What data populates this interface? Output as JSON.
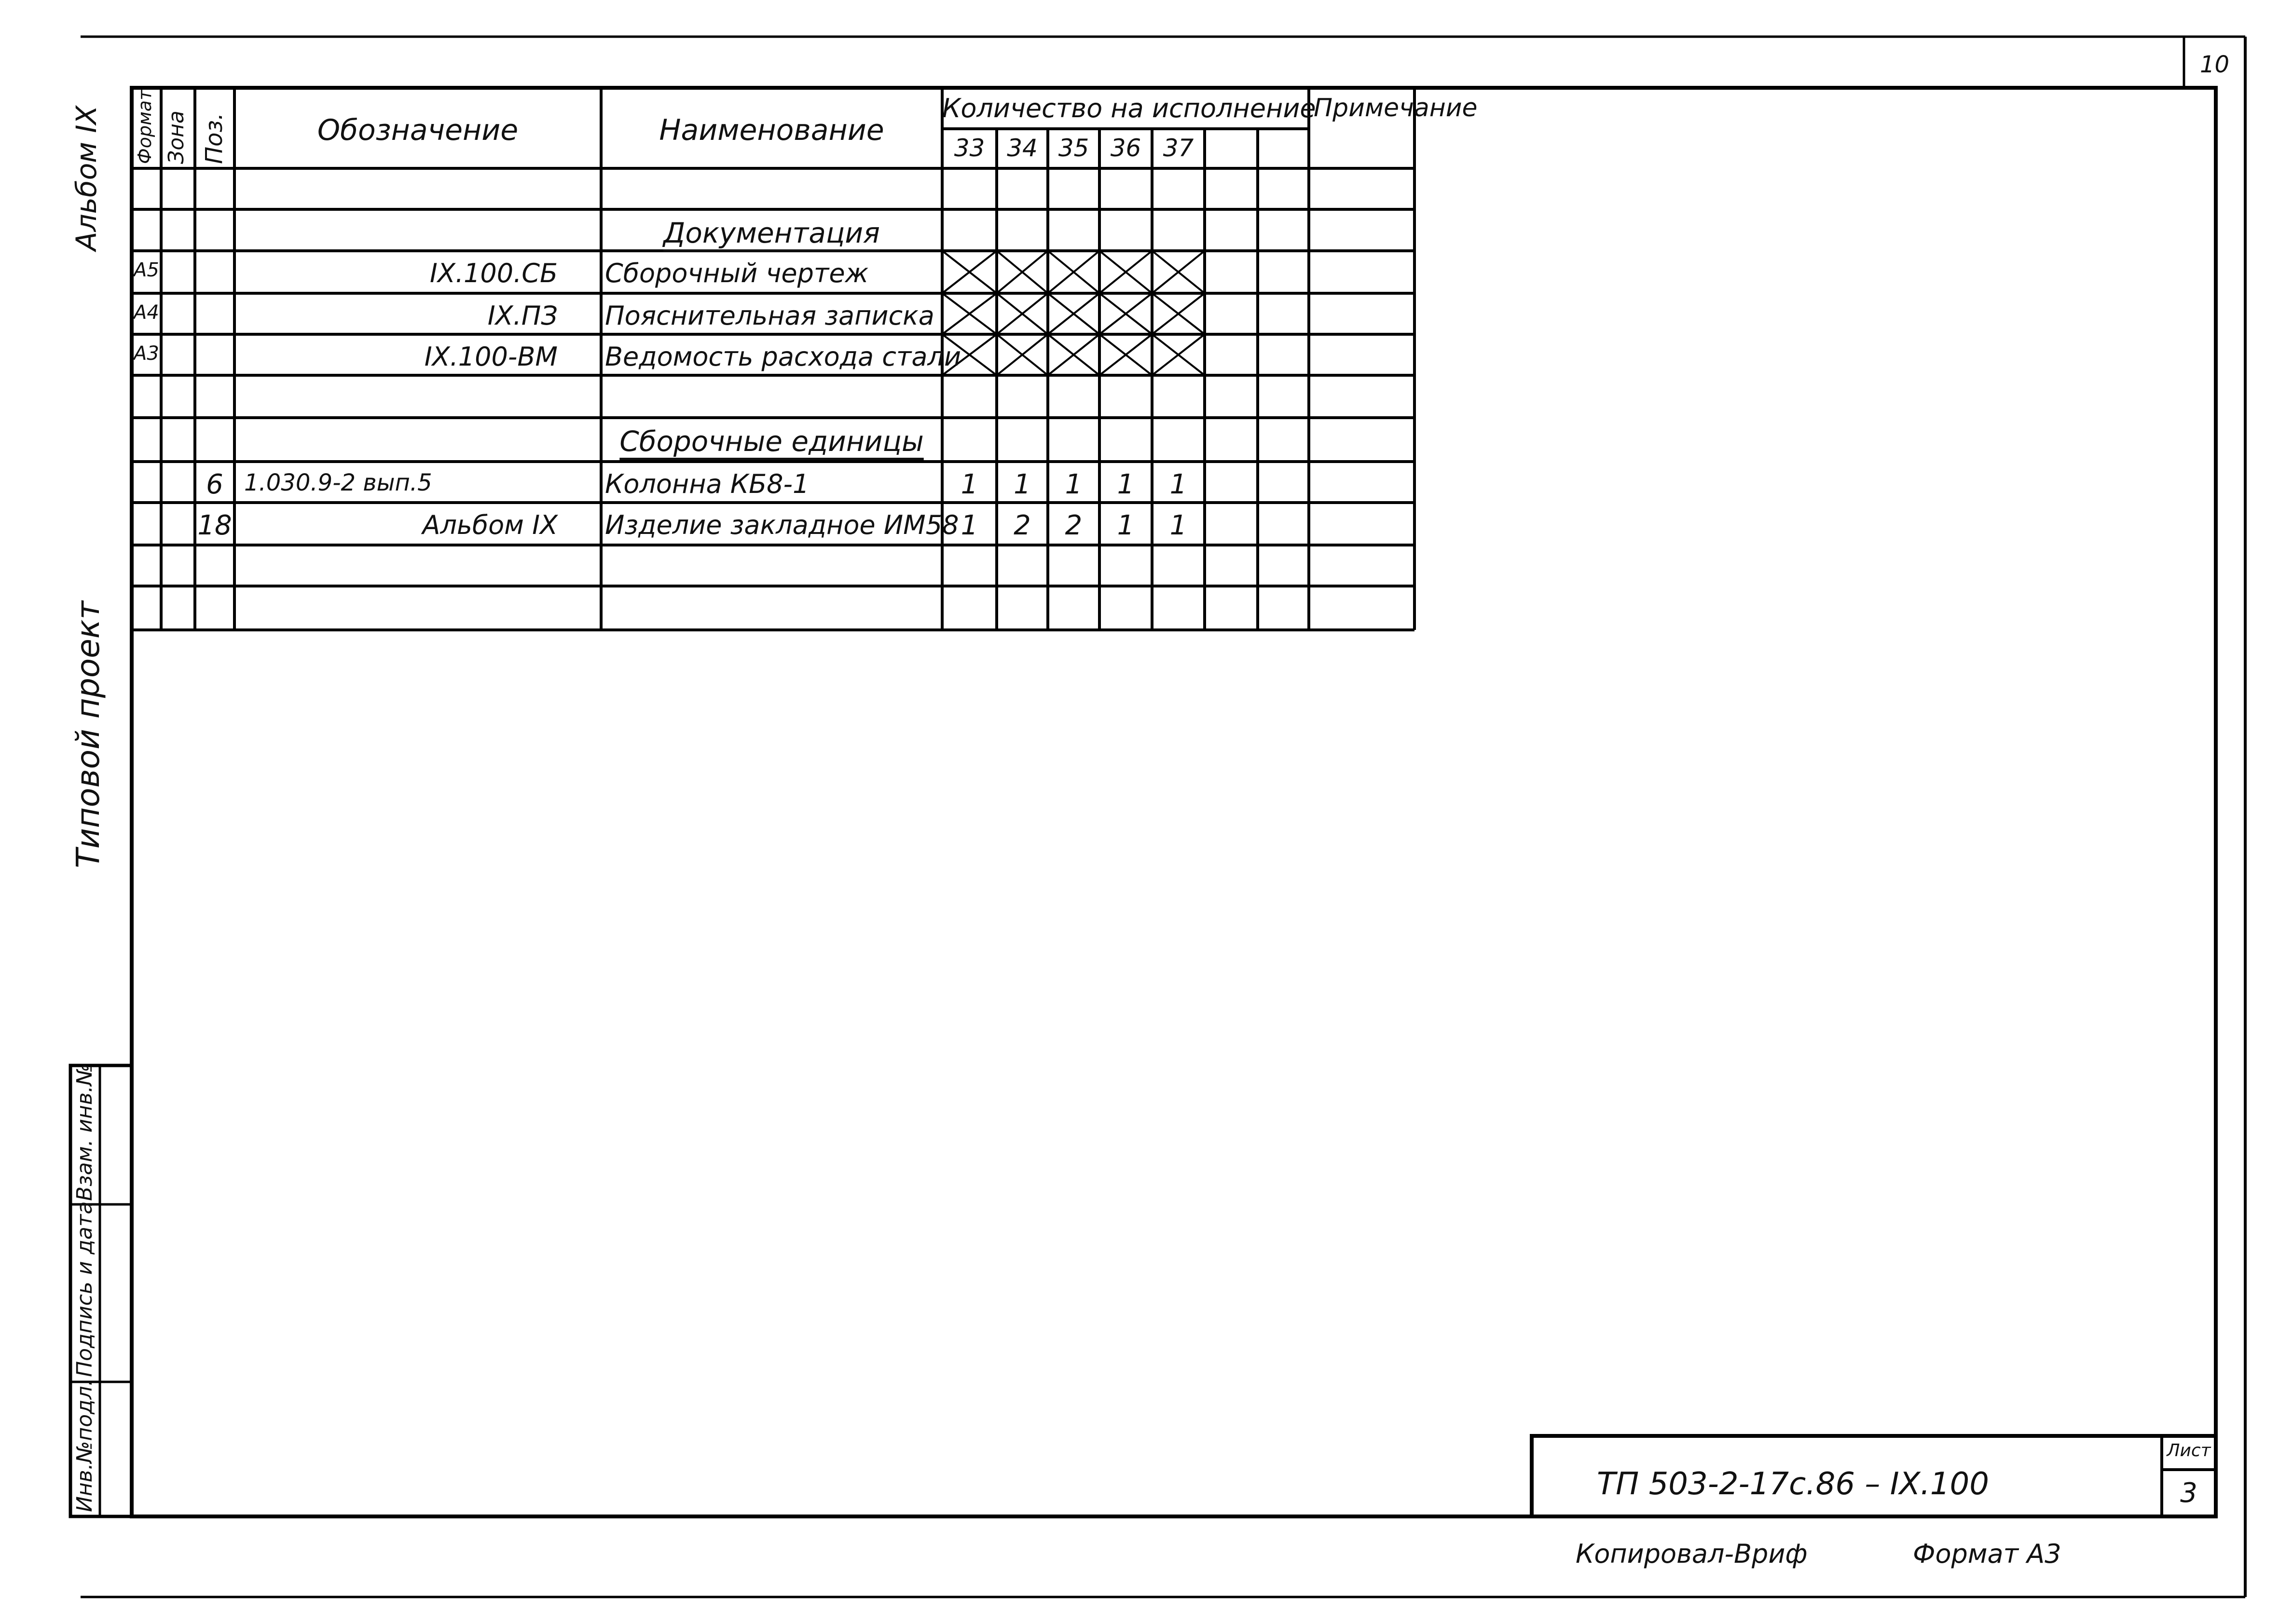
{
  "sheet_number_corner": "10",
  "side_labels": {
    "album": "Альбом IX",
    "project": "Типовой проект",
    "stamp_fields": [
      "Инв.№подл.",
      "Подпись и дата",
      "Взам. инв.№"
    ]
  },
  "table": {
    "headers": {
      "format": "Формат",
      "zone": "Зона",
      "pos": "Поз.",
      "designation": "Обозначение",
      "name": "Наименование",
      "quantity": "Количество на исполнение",
      "note": "Примечание",
      "variants": [
        "33",
        "34",
        "35",
        "36",
        "37",
        "",
        ""
      ]
    },
    "rows": [
      {
        "format": "",
        "zone": "",
        "pos": "",
        "designation": "",
        "name": "",
        "qty": []
      },
      {
        "section": "Документация"
      },
      {
        "format": "А5",
        "zone": "",
        "pos": "",
        "designation": "IX.100.СБ",
        "name": "Сборочный чертеж",
        "crossed": true,
        "qty": []
      },
      {
        "format": "А4",
        "zone": "",
        "pos": "",
        "designation": "IX.ПЗ",
        "name": "Пояснительная записка",
        "crossed": true,
        "qty": []
      },
      {
        "format": "А3",
        "zone": "",
        "pos": "",
        "designation": "IX.100-ВМ",
        "name": "Ведомость расхода стали",
        "crossed": true,
        "qty": []
      },
      {
        "format": "",
        "zone": "",
        "pos": "",
        "designation": "",
        "name": "",
        "qty": []
      },
      {
        "section": "Сборочные единицы"
      },
      {
        "format": "",
        "zone": "",
        "pos": "6",
        "designation": "1.030.9-2 вып.5",
        "name": "Колонна   КБ8-1",
        "qty": [
          "1",
          "1",
          "1",
          "1",
          "1"
        ]
      },
      {
        "format": "",
        "zone": "",
        "pos": "18",
        "designation": "Альбом IX",
        "name": "Изделие закладное ИМ58",
        "qty": [
          "1",
          "2",
          "2",
          "1",
          "1"
        ]
      },
      {
        "format": "",
        "zone": "",
        "pos": "",
        "designation": "",
        "name": "",
        "qty": []
      },
      {
        "format": "",
        "zone": "",
        "pos": "",
        "designation": "",
        "name": "",
        "qty": []
      }
    ]
  },
  "title_block": {
    "code": "ТП   503-2-17с.86 – IX.100",
    "sheet_label": "Лист",
    "sheet_number": "3"
  },
  "footer": {
    "copied_by": "Копировал-Вриф",
    "format": "Формат А3"
  }
}
